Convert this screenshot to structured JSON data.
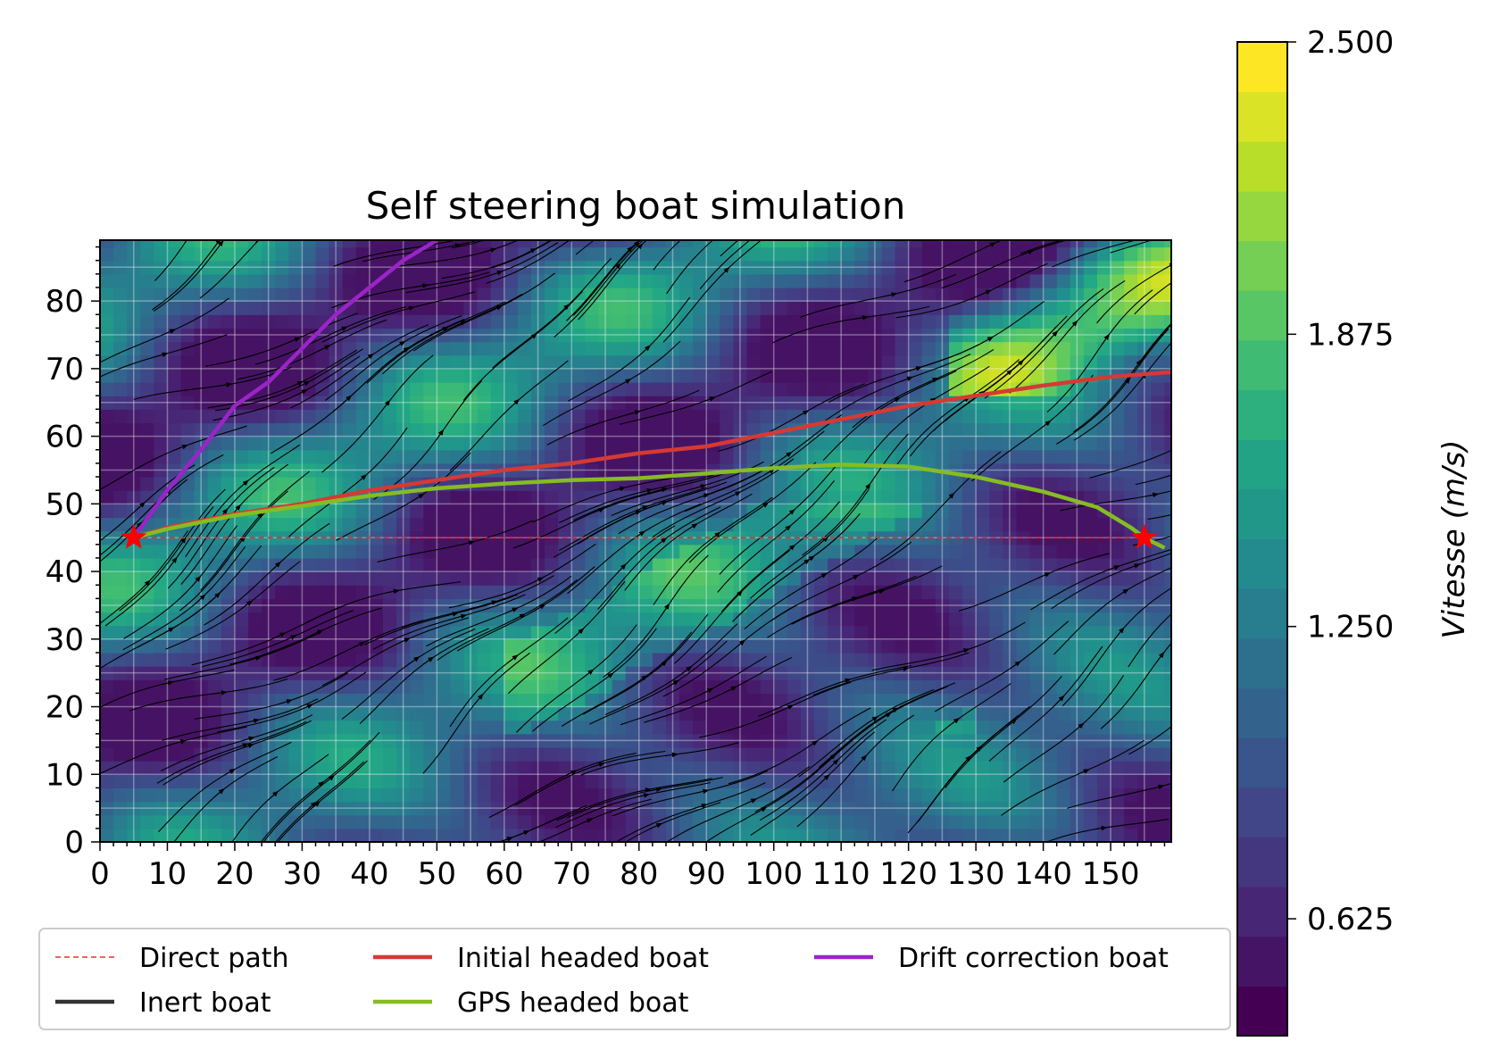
{
  "chart_data": {
    "type": "line",
    "title": "Self steering boat simulation",
    "xlabel": "",
    "ylabel": "",
    "xlim": [
      0,
      159
    ],
    "ylim": [
      0,
      89
    ],
    "x_ticks": [
      0,
      10,
      20,
      30,
      40,
      50,
      60,
      70,
      80,
      90,
      100,
      110,
      120,
      130,
      140,
      150
    ],
    "y_ticks": [
      0,
      10,
      20,
      30,
      40,
      50,
      60,
      70,
      80
    ],
    "grid": true,
    "background": "flow speed field (viridis) with streamlines",
    "start_point": [
      5,
      45
    ],
    "end_point": [
      155,
      45
    ],
    "series": [
      {
        "name": "Direct path",
        "color": "#e8302a",
        "style": "dashed",
        "points": [
          [
            5,
            45
          ],
          [
            155,
            45
          ]
        ]
      },
      {
        "name": "Inert boat",
        "color": "#333333",
        "style": "solid",
        "points": []
      },
      {
        "name": "Initial headed boat",
        "color": "#d43a34",
        "style": "solid",
        "points": [
          [
            5,
            45
          ],
          [
            10,
            46.5
          ],
          [
            20,
            48.5
          ],
          [
            30,
            50
          ],
          [
            40,
            52
          ],
          [
            50,
            53.5
          ],
          [
            60,
            55
          ],
          [
            70,
            56
          ],
          [
            80,
            57.5
          ],
          [
            90,
            58.5
          ],
          [
            100,
            60.5
          ],
          [
            110,
            62.5
          ],
          [
            120,
            64.5
          ],
          [
            130,
            66
          ],
          [
            140,
            67.5
          ],
          [
            150,
            68.8
          ],
          [
            159,
            69.5
          ]
        ]
      },
      {
        "name": "GPS headed boat",
        "color": "#86bc23",
        "style": "solid",
        "points": [
          [
            5,
            45
          ],
          [
            10,
            46.3
          ],
          [
            20,
            48.3
          ],
          [
            30,
            49.7
          ],
          [
            40,
            51.2
          ],
          [
            50,
            52.3
          ],
          [
            60,
            53
          ],
          [
            70,
            53.5
          ],
          [
            80,
            53.8
          ],
          [
            90,
            54.5
          ],
          [
            100,
            55.3
          ],
          [
            110,
            55.8
          ],
          [
            120,
            55.5
          ],
          [
            130,
            54
          ],
          [
            140,
            51.8
          ],
          [
            148,
            49.5
          ],
          [
            153,
            46.5
          ],
          [
            155,
            45
          ],
          [
            158,
            43.5
          ]
        ]
      },
      {
        "name": "Drift correction boat",
        "color": "#9a24c8",
        "style": "solid",
        "points": [
          [
            5,
            45
          ],
          [
            10,
            52
          ],
          [
            15,
            58
          ],
          [
            20,
            64.5
          ],
          [
            25,
            68
          ],
          [
            30,
            73
          ],
          [
            35,
            78
          ],
          [
            40,
            82
          ],
          [
            45,
            86
          ],
          [
            50,
            89
          ]
        ]
      }
    ],
    "colorbar": {
      "label": "Vitesse (m/s)",
      "min": 0.375,
      "max": 2.5,
      "ticks": [
        "0.625",
        "1.250",
        "1.875",
        "2.500"
      ],
      "tick_values": [
        0.625,
        1.25,
        1.875,
        2.5
      ],
      "levels": 20,
      "colormap": "viridis"
    },
    "legend": {
      "placement": "bottom",
      "columns": 3
    }
  }
}
